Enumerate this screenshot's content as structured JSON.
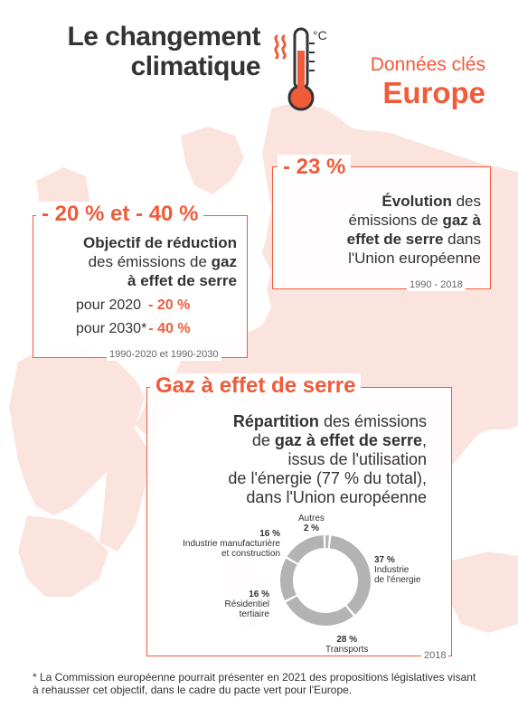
{
  "title": {
    "line1": "Le changement",
    "line2": "climatique"
  },
  "subtitle": {
    "line1": "Données clés",
    "line2": "Europe"
  },
  "colors": {
    "accent": "#f05b3a",
    "map": "#fbe4de",
    "donut": "#b3b3b3",
    "text": "#333333"
  },
  "icons": {
    "thermometer": "thermometer-icon"
  },
  "box_evolution": {
    "value": "- 23 %",
    "desc_bold1": "Évolution",
    "desc_rest1": " des",
    "desc_line2_a": "émissions de ",
    "desc_line2_b": "gaz à",
    "desc_line3_a": "effet de serre",
    "desc_line3_b": " dans",
    "desc_line4": "l'Union européenne",
    "source": "1990 - 2018"
  },
  "box_objective": {
    "value": "- 20 % et - 40 %",
    "desc_line1": "Objectif de réduction",
    "desc_line2_a": "des émissions de ",
    "desc_line2_b": "gaz",
    "desc_line3": "à effet de serre",
    "row1_label": "pour 2020",
    "row1_value": "- 20 %",
    "row2_label": "pour 2030*",
    "row2_value": "- 40 %",
    "source": "1990-2020 et 1990-2030"
  },
  "box_ghg": {
    "heading": "Gaz à effet de serre",
    "desc_line1_a": "Répartition",
    "desc_line1_b": " des émissions",
    "desc_line2_a": "de ",
    "desc_line2_b": "gaz à effet de serre",
    "desc_line2_c": ",",
    "desc_line3": "issus de l'utilisation",
    "desc_line4": "de l'énergie (77 % du total),",
    "desc_line5": "dans l'Union européenne",
    "source": "2018"
  },
  "chart_data": {
    "type": "pie",
    "categories": [
      "Industrie de l'énergie",
      "Transports",
      "Résidentiel tertiaire",
      "Industrie manufacturière et construction",
      "Autres"
    ],
    "values": [
      37,
      28,
      16,
      16,
      2
    ],
    "unit": "%",
    "labels": [
      {
        "pct": "37 %",
        "line1": "Industrie",
        "line2": "de l'énergie"
      },
      {
        "pct": "28 %",
        "line1": "Transports",
        "line2": ""
      },
      {
        "pct": "16 %",
        "line1": "Résidentiel",
        "line2": "tertiaire"
      },
      {
        "pct": "16 %",
        "line1": "Industrie manufacturière",
        "line2": "et construction"
      },
      {
        "pct": "2 %",
        "line1": "Autres",
        "line2": ""
      }
    ]
  },
  "footnote": "* La Commission européenne pourrait présenter en 2021 des propositions législatives visant à rehausser cet objectif, dans le cadre du pacte vert pour l'Europe."
}
